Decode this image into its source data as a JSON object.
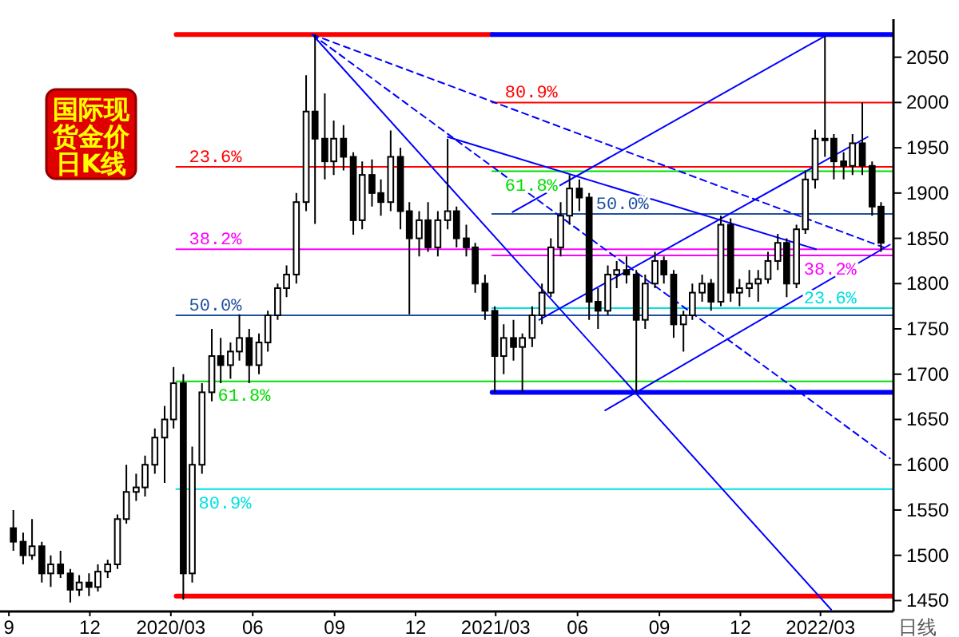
{
  "chart_data": {
    "type": "candlestick",
    "title": "国际现货金价日K线",
    "xlabel": "日线",
    "xlim": [
      "2019-08-22",
      "2022-05-22"
    ],
    "ylim": [
      1438,
      2092
    ],
    "xticks": [
      {
        "value": "2019-09-01",
        "label": "9"
      },
      {
        "value": "2019-12-01",
        "label": "12"
      },
      {
        "value": "2020-03-01",
        "label": "2020/03"
      },
      {
        "value": "2020-06-01",
        "label": "06"
      },
      {
        "value": "2020-09-01",
        "label": "09"
      },
      {
        "value": "2020-12-01",
        "label": "12"
      },
      {
        "value": "2021-03-01",
        "label": "2021/03"
      },
      {
        "value": "2021-06-01",
        "label": "06"
      },
      {
        "value": "2021-09-01",
        "label": "09"
      },
      {
        "value": "2021-12-01",
        "label": "12"
      },
      {
        "value": "2022-03-01",
        "label": "2022/03"
      }
    ],
    "yticks": [
      1450,
      1500,
      1550,
      1600,
      1650,
      1700,
      1750,
      1800,
      1850,
      1900,
      1950,
      2000,
      2050
    ],
    "x": [
      "2019-09-06",
      "2019-09-17",
      "2019-09-27",
      "2019-10-08",
      "2019-10-18",
      "2019-10-29",
      "2019-11-09",
      "2019-11-19",
      "2019-11-30",
      "2019-12-10",
      "2019-12-21",
      "2020-01-01",
      "2020-01-11",
      "2020-01-22",
      "2020-02-01",
      "2020-02-12",
      "2020-02-23",
      "2020-03-04",
      "2020-03-15",
      "2020-03-25",
      "2020-04-05",
      "2020-04-16",
      "2020-04-26",
      "2020-05-07",
      "2020-05-17",
      "2020-05-28",
      "2020-06-08",
      "2020-06-18",
      "2020-06-29",
      "2020-07-09",
      "2020-07-20",
      "2020-07-31",
      "2020-08-10",
      "2020-08-21",
      "2020-08-31",
      "2020-09-11",
      "2020-09-22",
      "2020-10-02",
      "2020-10-13",
      "2020-10-23",
      "2020-11-03",
      "2020-11-14",
      "2020-11-24",
      "2020-12-05",
      "2020-12-15",
      "2020-12-26",
      "2021-01-06",
      "2021-01-16",
      "2021-01-27",
      "2021-02-06",
      "2021-02-17",
      "2021-02-28",
      "2021-03-10",
      "2021-03-21",
      "2021-03-31",
      "2021-04-11",
      "2021-04-22",
      "2021-05-02",
      "2021-05-13",
      "2021-05-23",
      "2021-06-03",
      "2021-06-14",
      "2021-06-24",
      "2021-07-05",
      "2021-07-15",
      "2021-07-26",
      "2021-08-06",
      "2021-08-16",
      "2021-08-27",
      "2021-09-06",
      "2021-09-17",
      "2021-09-28",
      "2021-10-08",
      "2021-10-19",
      "2021-10-29",
      "2021-11-09",
      "2021-11-20",
      "2021-11-30",
      "2021-12-11",
      "2021-12-21",
      "2022-01-01",
      "2022-01-12",
      "2022-01-22",
      "2022-02-02",
      "2022-02-12",
      "2022-02-23",
      "2022-03-06",
      "2022-03-16",
      "2022-03-27",
      "2022-04-06",
      "2022-04-17",
      "2022-04-28",
      "2022-05-08"
    ],
    "ohlc": [
      [
        1530,
        1550,
        1505,
        1515
      ],
      [
        1515,
        1525,
        1490,
        1500
      ],
      [
        1500,
        1540,
        1495,
        1510
      ],
      [
        1510,
        1515,
        1470,
        1480
      ],
      [
        1480,
        1500,
        1465,
        1490
      ],
      [
        1490,
        1505,
        1475,
        1480
      ],
      [
        1480,
        1485,
        1448,
        1462
      ],
      [
        1462,
        1478,
        1455,
        1470
      ],
      [
        1470,
        1480,
        1455,
        1465
      ],
      [
        1465,
        1490,
        1460,
        1482
      ],
      [
        1482,
        1495,
        1475,
        1490
      ],
      [
        1490,
        1545,
        1485,
        1540
      ],
      [
        1540,
        1600,
        1535,
        1570
      ],
      [
        1570,
        1590,
        1560,
        1575
      ],
      [
        1575,
        1610,
        1565,
        1600
      ],
      [
        1600,
        1640,
        1590,
        1630
      ],
      [
        1630,
        1665,
        1580,
        1650
      ],
      [
        1650,
        1708,
        1640,
        1690
      ],
      [
        1690,
        1700,
        1451,
        1480
      ],
      [
        1480,
        1620,
        1470,
        1600
      ],
      [
        1600,
        1690,
        1590,
        1680
      ],
      [
        1680,
        1750,
        1670,
        1720
      ],
      [
        1720,
        1740,
        1690,
        1710
      ],
      [
        1710,
        1735,
        1695,
        1725
      ],
      [
        1725,
        1766,
        1715,
        1740
      ],
      [
        1740,
        1750,
        1690,
        1710
      ],
      [
        1710,
        1745,
        1700,
        1735
      ],
      [
        1735,
        1770,
        1725,
        1765
      ],
      [
        1765,
        1800,
        1760,
        1795
      ],
      [
        1795,
        1820,
        1785,
        1810
      ],
      [
        1810,
        1900,
        1800,
        1890
      ],
      [
        1890,
        2030,
        1880,
        1990
      ],
      [
        1990,
        2075,
        1866,
        1960
      ],
      [
        1960,
        2010,
        1915,
        1935
      ],
      [
        1935,
        1980,
        1920,
        1960
      ],
      [
        1960,
        1975,
        1925,
        1940
      ],
      [
        1940,
        1945,
        1854,
        1870
      ],
      [
        1870,
        1935,
        1860,
        1920
      ],
      [
        1920,
        1937,
        1885,
        1900
      ],
      [
        1900,
        1915,
        1875,
        1890
      ],
      [
        1890,
        1969,
        1880,
        1940
      ],
      [
        1940,
        1950,
        1860,
        1880
      ],
      [
        1880,
        1890,
        1766,
        1850
      ],
      [
        1850,
        1880,
        1830,
        1870
      ],
      [
        1870,
        1890,
        1835,
        1840
      ],
      [
        1840,
        1880,
        1830,
        1870
      ],
      [
        1870,
        1960,
        1860,
        1880
      ],
      [
        1880,
        1885,
        1840,
        1850
      ],
      [
        1850,
        1865,
        1830,
        1840
      ],
      [
        1840,
        1845,
        1790,
        1800
      ],
      [
        1800,
        1810,
        1760,
        1770
      ],
      [
        1770,
        1775,
        1680,
        1720
      ],
      [
        1720,
        1755,
        1700,
        1740
      ],
      [
        1740,
        1760,
        1715,
        1730
      ],
      [
        1730,
        1745,
        1680,
        1740
      ],
      [
        1740,
        1775,
        1730,
        1765
      ],
      [
        1765,
        1800,
        1755,
        1790
      ],
      [
        1790,
        1850,
        1785,
        1840
      ],
      [
        1840,
        1890,
        1830,
        1875
      ],
      [
        1875,
        1920,
        1865,
        1905
      ],
      [
        1905,
        1915,
        1880,
        1895
      ],
      [
        1895,
        1900,
        1760,
        1780
      ],
      [
        1780,
        1795,
        1750,
        1770
      ],
      [
        1770,
        1820,
        1765,
        1810
      ],
      [
        1810,
        1825,
        1795,
        1815
      ],
      [
        1815,
        1830,
        1800,
        1810
      ],
      [
        1810,
        1815,
        1680,
        1760
      ],
      [
        1760,
        1810,
        1750,
        1800
      ],
      [
        1800,
        1835,
        1795,
        1825
      ],
      [
        1825,
        1830,
        1800,
        1810
      ],
      [
        1810,
        1815,
        1740,
        1755
      ],
      [
        1755,
        1770,
        1725,
        1765
      ],
      [
        1765,
        1800,
        1760,
        1790
      ],
      [
        1790,
        1810,
        1780,
        1800
      ],
      [
        1800,
        1805,
        1770,
        1780
      ],
      [
        1780,
        1875,
        1775,
        1865
      ],
      [
        1865,
        1872,
        1780,
        1790
      ],
      [
        1790,
        1805,
        1775,
        1795
      ],
      [
        1795,
        1815,
        1785,
        1800
      ],
      [
        1800,
        1815,
        1780,
        1805
      ],
      [
        1805,
        1835,
        1800,
        1825
      ],
      [
        1825,
        1855,
        1815,
        1845
      ],
      [
        1845,
        1850,
        1785,
        1800
      ],
      [
        1800,
        1865,
        1795,
        1860
      ],
      [
        1860,
        1925,
        1855,
        1915
      ],
      [
        1915,
        1970,
        1905,
        1960
      ],
      [
        1960,
        2073,
        1940,
        1960
      ],
      [
        1960,
        1965,
        1915,
        1935
      ],
      [
        1935,
        1945,
        1915,
        1930
      ],
      [
        1930,
        1965,
        1920,
        1955
      ],
      [
        1955,
        2000,
        1920,
        1930
      ],
      [
        1930,
        1935,
        1875,
        1885
      ],
      [
        1885,
        1890,
        1835,
        1845
      ]
    ],
    "series": [
      {
        "type": "line",
        "color": "#ff0000",
        "x": [
          "2020-03-07",
          "2021-02-25"
        ],
        "values": [
          2075,
          2075
        ]
      },
      {
        "type": "line",
        "color": "#0000ff",
        "x": [
          "2021-02-25",
          "2022-05-22"
        ],
        "values": [
          2075,
          2075
        ]
      },
      {
        "type": "line",
        "color": "#ff0000",
        "x": [
          "2020-03-07",
          "2022-05-22"
        ],
        "values": [
          1455,
          1455
        ]
      },
      {
        "type": "line",
        "color": "#0000ff",
        "x": [
          "2021-02-25",
          "2022-05-22"
        ],
        "values": [
          1680,
          1680
        ]
      },
      {
        "type": "line",
        "name": "23.6%",
        "color": "#ff0000",
        "x": [
          "2020-03-07",
          "2022-05-22"
        ],
        "values": [
          1929,
          1929
        ]
      },
      {
        "type": "line",
        "name": "38.2%",
        "color": "#ff00ff",
        "x": [
          "2020-03-07",
          "2022-05-22"
        ],
        "values": [
          1838,
          1838
        ]
      },
      {
        "type": "line",
        "name": "50.0%",
        "color": "#2050a0",
        "x": [
          "2020-03-07",
          "2022-05-22"
        ],
        "values": [
          1765,
          1765
        ]
      },
      {
        "type": "line",
        "name": "61.8%",
        "color": "#00dd00",
        "x": [
          "2020-03-07",
          "2022-05-22"
        ],
        "values": [
          1692,
          1692
        ]
      },
      {
        "type": "line",
        "name": "80.9%",
        "color": "#00e0e0",
        "x": [
          "2020-03-07",
          "2022-05-22"
        ],
        "values": [
          1573,
          1573
        ]
      },
      {
        "type": "line",
        "name": "80.9%",
        "color": "#ff0000",
        "x": [
          "2021-02-25",
          "2022-05-22"
        ],
        "values": [
          2000,
          2000
        ]
      },
      {
        "type": "line",
        "name": "61.8%",
        "color": "#00dd00",
        "x": [
          "2021-02-25",
          "2022-05-22"
        ],
        "values": [
          1924,
          1924
        ]
      },
      {
        "type": "line",
        "name": "50.0%",
        "color": "#2050a0",
        "x": [
          "2021-02-25",
          "2022-05-22"
        ],
        "values": [
          1877,
          1877
        ]
      },
      {
        "type": "line",
        "name": "38.2%",
        "color": "#ff00ff",
        "x": [
          "2021-02-25",
          "2022-05-22"
        ],
        "values": [
          1831,
          1831
        ]
      },
      {
        "type": "line",
        "name": "23.6%",
        "color": "#00e0e0",
        "x": [
          "2021-02-25",
          "2022-05-22"
        ],
        "values": [
          1773,
          1773
        ]
      },
      {
        "type": "line",
        "color": "#0000ff",
        "x": [
          "2020-08-07",
          "2022-03-13"
        ],
        "values": [
          2075,
          1440
        ]
      },
      {
        "type": "line",
        "color": "#0000ff",
        "x": [
          "2021-01-06",
          "2022-02-24"
        ],
        "values": [
          1962,
          1838
        ]
      },
      {
        "type": "line",
        "color": "#0000ff",
        "x": [
          "2021-03-20",
          "2022-03-09"
        ],
        "values": [
          1879,
          2075
        ]
      },
      {
        "type": "line",
        "color": "#0000ff",
        "x": [
          "2021-04-19",
          "2022-04-23"
        ],
        "values": [
          1760,
          1962
        ]
      },
      {
        "type": "line",
        "color": "#0000ff",
        "x": [
          "2021-07-02",
          "2022-05-18"
        ],
        "values": [
          1660,
          1843
        ]
      },
      {
        "type": "line",
        "color": "#0000ff",
        "line_style": "dashed",
        "x": [
          "2020-08-07",
          "2022-05-11"
        ],
        "values": [
          2075,
          1840
        ]
      },
      {
        "type": "line",
        "color": "#0000ff",
        "line_style": "dashed",
        "x": [
          "2020-08-07",
          "2022-05-18"
        ],
        "values": [
          2075,
          1607
        ]
      }
    ]
  }
}
